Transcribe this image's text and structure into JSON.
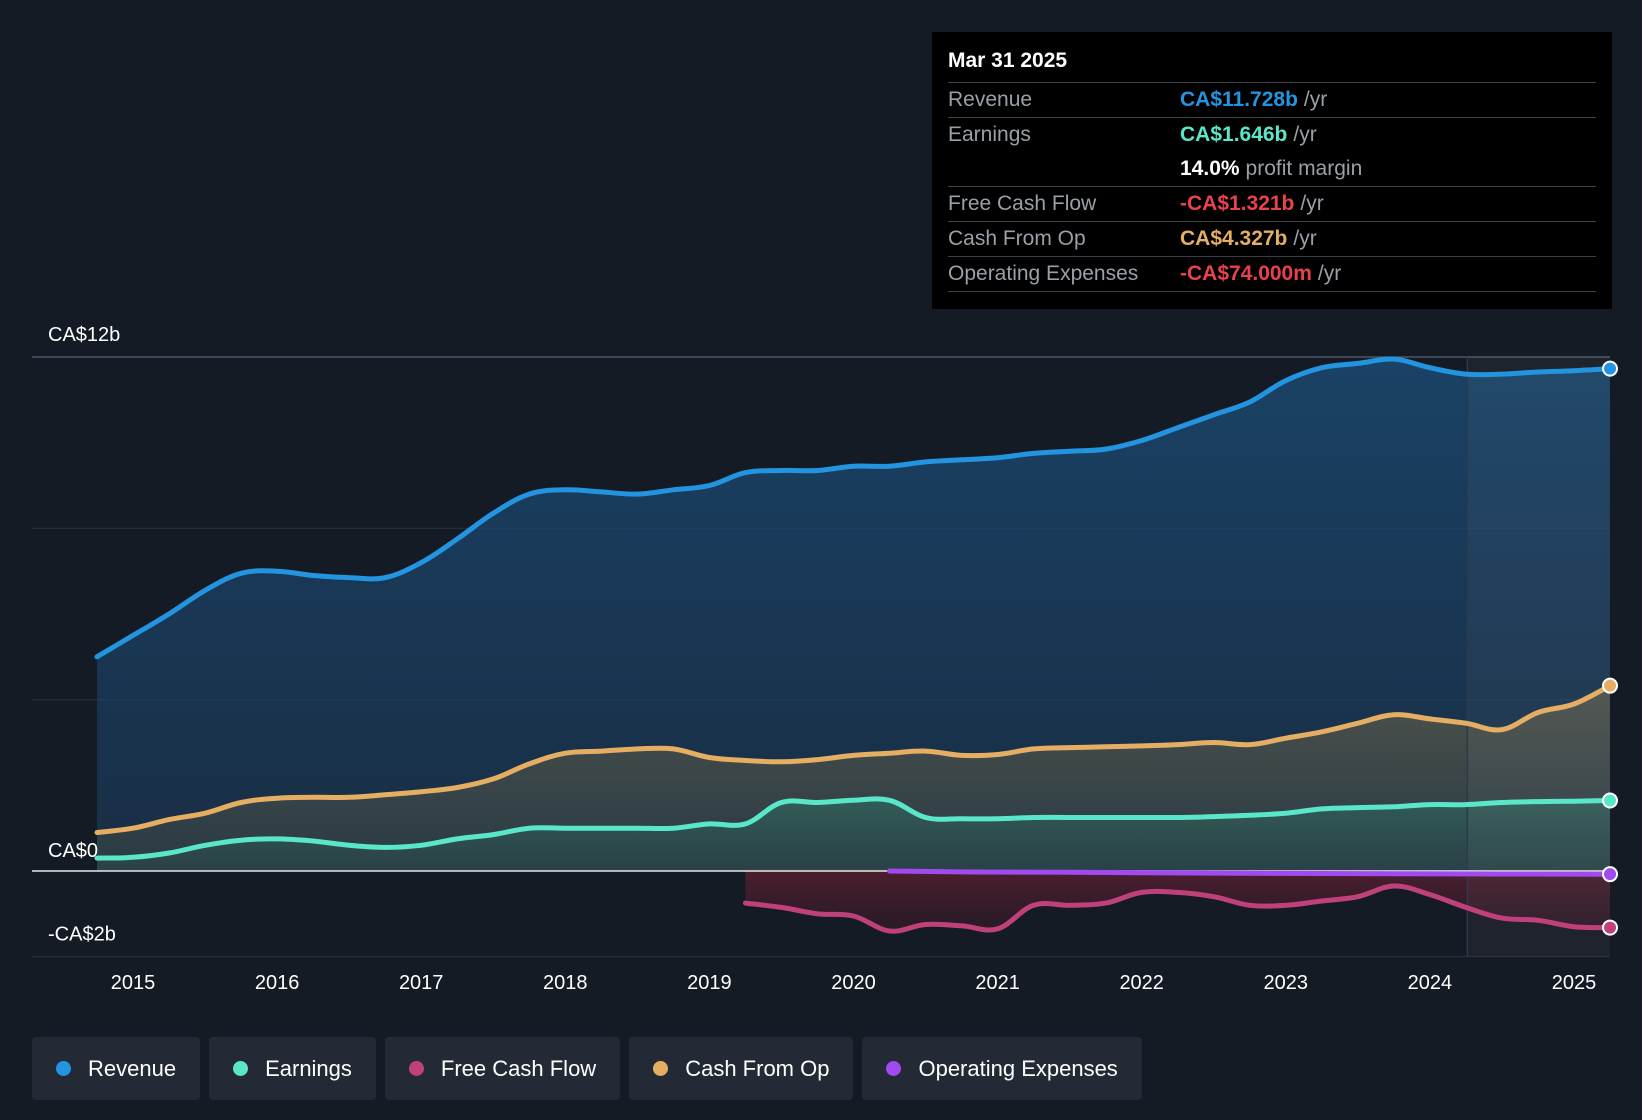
{
  "chart_data": {
    "type": "area",
    "y_unit": "CA$ billions",
    "ylim": [
      -2,
      12
    ],
    "y_tick_labels": [
      {
        "value": 12,
        "label": "CA$12b"
      },
      {
        "value": 0,
        "label": "CA$0"
      },
      {
        "value": -2,
        "label": "-CA$2b"
      }
    ],
    "x_ticks": [
      2015,
      2016,
      2017,
      2018,
      2019,
      2020,
      2021,
      2022,
      2023,
      2024,
      2025
    ],
    "xlim": [
      2014.72,
      2025.25
    ],
    "forecast_divider_x": 2024.26,
    "series": [
      {
        "name": "Revenue",
        "color": "#2394df",
        "points": [
          [
            2014.75,
            5.0
          ],
          [
            2015.0,
            5.5
          ],
          [
            2015.25,
            6.0
          ],
          [
            2015.5,
            6.55
          ],
          [
            2015.75,
            6.95
          ],
          [
            2016.0,
            7.0
          ],
          [
            2016.25,
            6.9
          ],
          [
            2016.5,
            6.85
          ],
          [
            2016.75,
            6.85
          ],
          [
            2017.0,
            7.2
          ],
          [
            2017.25,
            7.75
          ],
          [
            2017.5,
            8.35
          ],
          [
            2017.75,
            8.8
          ],
          [
            2018.0,
            8.9
          ],
          [
            2018.25,
            8.85
          ],
          [
            2018.5,
            8.8
          ],
          [
            2018.75,
            8.9
          ],
          [
            2019.0,
            9.0
          ],
          [
            2019.25,
            9.3
          ],
          [
            2019.5,
            9.35
          ],
          [
            2019.75,
            9.35
          ],
          [
            2020.0,
            9.45
          ],
          [
            2020.25,
            9.45
          ],
          [
            2020.5,
            9.55
          ],
          [
            2020.75,
            9.6
          ],
          [
            2021.0,
            9.65
          ],
          [
            2021.25,
            9.75
          ],
          [
            2021.5,
            9.8
          ],
          [
            2021.75,
            9.85
          ],
          [
            2022.0,
            10.05
          ],
          [
            2022.25,
            10.35
          ],
          [
            2022.5,
            10.65
          ],
          [
            2022.75,
            10.95
          ],
          [
            2023.0,
            11.45
          ],
          [
            2023.25,
            11.75
          ],
          [
            2023.5,
            11.85
          ],
          [
            2023.75,
            11.95
          ],
          [
            2024.0,
            11.75
          ],
          [
            2024.25,
            11.6
          ],
          [
            2024.5,
            11.6
          ],
          [
            2024.75,
            11.65
          ],
          [
            2025.0,
            11.68
          ],
          [
            2025.25,
            11.728
          ]
        ]
      },
      {
        "name": "Earnings",
        "color": "#5ae6c8",
        "points": [
          [
            2014.75,
            0.3
          ],
          [
            2015.0,
            0.32
          ],
          [
            2015.25,
            0.42
          ],
          [
            2015.5,
            0.6
          ],
          [
            2015.75,
            0.72
          ],
          [
            2016.0,
            0.75
          ],
          [
            2016.25,
            0.7
          ],
          [
            2016.5,
            0.6
          ],
          [
            2016.75,
            0.55
          ],
          [
            2017.0,
            0.6
          ],
          [
            2017.25,
            0.75
          ],
          [
            2017.5,
            0.85
          ],
          [
            2017.75,
            1.0
          ],
          [
            2018.0,
            1.0
          ],
          [
            2018.25,
            1.0
          ],
          [
            2018.5,
            1.0
          ],
          [
            2018.75,
            1.0
          ],
          [
            2019.0,
            1.1
          ],
          [
            2019.25,
            1.1
          ],
          [
            2019.5,
            1.6
          ],
          [
            2019.75,
            1.6
          ],
          [
            2020.0,
            1.65
          ],
          [
            2020.25,
            1.65
          ],
          [
            2020.5,
            1.25
          ],
          [
            2020.75,
            1.22
          ],
          [
            2021.0,
            1.22
          ],
          [
            2021.25,
            1.25
          ],
          [
            2021.5,
            1.25
          ],
          [
            2021.75,
            1.25
          ],
          [
            2022.0,
            1.25
          ],
          [
            2022.25,
            1.25
          ],
          [
            2022.5,
            1.27
          ],
          [
            2022.75,
            1.3
          ],
          [
            2023.0,
            1.35
          ],
          [
            2023.25,
            1.45
          ],
          [
            2023.5,
            1.48
          ],
          [
            2023.75,
            1.5
          ],
          [
            2024.0,
            1.55
          ],
          [
            2024.25,
            1.55
          ],
          [
            2024.5,
            1.6
          ],
          [
            2024.75,
            1.62
          ],
          [
            2025.0,
            1.63
          ],
          [
            2025.25,
            1.646
          ]
        ]
      },
      {
        "name": "Free Cash Flow",
        "color": "#c0417a",
        "points": [
          [
            2019.25,
            -0.75
          ],
          [
            2019.5,
            -0.85
          ],
          [
            2019.75,
            -1.0
          ],
          [
            2020.0,
            -1.05
          ],
          [
            2020.25,
            -1.4
          ],
          [
            2020.5,
            -1.25
          ],
          [
            2020.75,
            -1.28
          ],
          [
            2021.0,
            -1.35
          ],
          [
            2021.25,
            -0.8
          ],
          [
            2021.5,
            -0.8
          ],
          [
            2021.75,
            -0.75
          ],
          [
            2022.0,
            -0.5
          ],
          [
            2022.25,
            -0.5
          ],
          [
            2022.5,
            -0.6
          ],
          [
            2022.75,
            -0.8
          ],
          [
            2023.0,
            -0.8
          ],
          [
            2023.25,
            -0.7
          ],
          [
            2023.5,
            -0.6
          ],
          [
            2023.75,
            -0.35
          ],
          [
            2024.0,
            -0.55
          ],
          [
            2024.25,
            -0.85
          ],
          [
            2024.5,
            -1.1
          ],
          [
            2024.75,
            -1.15
          ],
          [
            2025.0,
            -1.3
          ],
          [
            2025.25,
            -1.321
          ]
        ]
      },
      {
        "name": "Cash From Op",
        "color": "#e5ae62",
        "points": [
          [
            2014.75,
            0.9
          ],
          [
            2015.0,
            1.0
          ],
          [
            2015.25,
            1.2
          ],
          [
            2015.5,
            1.35
          ],
          [
            2015.75,
            1.6
          ],
          [
            2016.0,
            1.7
          ],
          [
            2016.25,
            1.72
          ],
          [
            2016.5,
            1.72
          ],
          [
            2016.75,
            1.78
          ],
          [
            2017.0,
            1.85
          ],
          [
            2017.25,
            1.95
          ],
          [
            2017.5,
            2.15
          ],
          [
            2017.75,
            2.5
          ],
          [
            2018.0,
            2.75
          ],
          [
            2018.25,
            2.8
          ],
          [
            2018.5,
            2.85
          ],
          [
            2018.75,
            2.85
          ],
          [
            2019.0,
            2.65
          ],
          [
            2019.25,
            2.58
          ],
          [
            2019.5,
            2.55
          ],
          [
            2019.75,
            2.6
          ],
          [
            2020.0,
            2.7
          ],
          [
            2020.25,
            2.75
          ],
          [
            2020.5,
            2.8
          ],
          [
            2020.75,
            2.7
          ],
          [
            2021.0,
            2.72
          ],
          [
            2021.25,
            2.85
          ],
          [
            2021.5,
            2.88
          ],
          [
            2021.75,
            2.9
          ],
          [
            2022.0,
            2.92
          ],
          [
            2022.25,
            2.95
          ],
          [
            2022.5,
            3.0
          ],
          [
            2022.75,
            2.95
          ],
          [
            2023.0,
            3.1
          ],
          [
            2023.25,
            3.25
          ],
          [
            2023.5,
            3.45
          ],
          [
            2023.75,
            3.65
          ],
          [
            2024.0,
            3.55
          ],
          [
            2024.25,
            3.45
          ],
          [
            2024.5,
            3.3
          ],
          [
            2024.75,
            3.7
          ],
          [
            2025.0,
            3.9
          ],
          [
            2025.25,
            4.327
          ]
        ]
      },
      {
        "name": "Operating Expenses",
        "color": "#a04af0",
        "points": [
          [
            2020.25,
            0.0
          ],
          [
            2020.75,
            -0.02
          ],
          [
            2021.5,
            -0.03
          ],
          [
            2022.5,
            -0.05
          ],
          [
            2023.5,
            -0.06
          ],
          [
            2024.5,
            -0.07
          ],
          [
            2025.25,
            -0.074
          ]
        ]
      }
    ]
  },
  "tooltip": {
    "date": "Mar 31 2025",
    "rows": [
      {
        "label": "Revenue",
        "value": "CA$11.728b",
        "unit": "/yr",
        "color": "#2394df"
      },
      {
        "label": "Earnings",
        "value": "CA$1.646b",
        "unit": "/yr",
        "color": "#5ae6c8"
      },
      {
        "label": "",
        "value": "14.0%",
        "unit": "profit margin",
        "color": "#ffffff"
      },
      {
        "label": "Free Cash Flow",
        "value": "-CA$1.321b",
        "unit": "/yr",
        "color": "#e8424d"
      },
      {
        "label": "Cash From Op",
        "value": "CA$4.327b",
        "unit": "/yr",
        "color": "#e5ae62"
      },
      {
        "label": "Operating Expenses",
        "value": "-CA$74.000m",
        "unit": "/yr",
        "color": "#e8424d"
      }
    ]
  },
  "legend": [
    {
      "label": "Revenue",
      "color": "#2394df"
    },
    {
      "label": "Earnings",
      "color": "#5ae6c8"
    },
    {
      "label": "Free Cash Flow",
      "color": "#c0417a"
    },
    {
      "label": "Cash From Op",
      "color": "#e5ae62"
    },
    {
      "label": "Operating Expenses",
      "color": "#a04af0"
    }
  ]
}
